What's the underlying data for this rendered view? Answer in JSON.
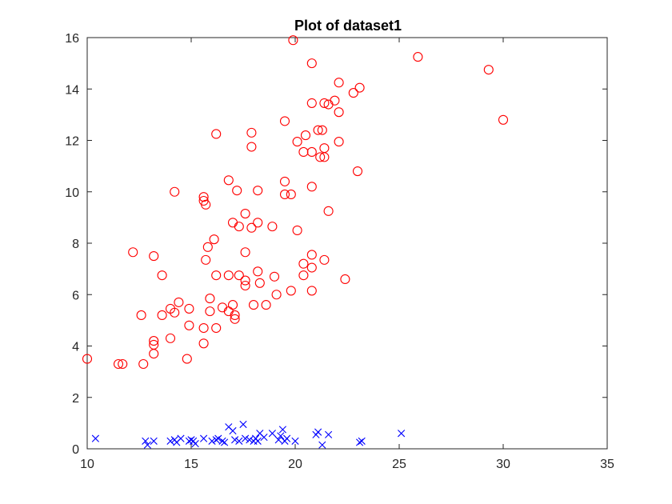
{
  "chart_data": {
    "type": "scatter",
    "title": "Plot of dataset1",
    "xlabel": "",
    "ylabel": "",
    "xlim": [
      10,
      35
    ],
    "ylim": [
      0,
      16
    ],
    "xticks": [
      10,
      15,
      20,
      25,
      30,
      35
    ],
    "yticks": [
      0,
      2,
      4,
      6,
      8,
      10,
      12,
      14,
      16
    ],
    "grid": false,
    "series": [
      {
        "marker": "o",
        "color": "#ff0000",
        "points": [
          [
            19.9,
            15.9
          ],
          [
            25.9,
            15.25
          ],
          [
            20.8,
            15.0
          ],
          [
            29.3,
            14.75
          ],
          [
            22.1,
            14.25
          ],
          [
            23.1,
            14.05
          ],
          [
            22.8,
            13.85
          ],
          [
            21.9,
            13.55
          ],
          [
            21.4,
            13.45
          ],
          [
            21.6,
            13.4
          ],
          [
            20.8,
            13.45
          ],
          [
            22.1,
            13.1
          ],
          [
            30.0,
            12.8
          ],
          [
            19.5,
            12.75
          ],
          [
            21.1,
            12.4
          ],
          [
            21.3,
            12.4
          ],
          [
            16.2,
            12.25
          ],
          [
            17.9,
            12.3
          ],
          [
            20.5,
            12.2
          ],
          [
            20.1,
            11.95
          ],
          [
            22.1,
            11.95
          ],
          [
            17.9,
            11.75
          ],
          [
            21.4,
            11.7
          ],
          [
            20.4,
            11.55
          ],
          [
            20.8,
            11.55
          ],
          [
            21.2,
            11.35
          ],
          [
            21.4,
            11.35
          ],
          [
            23.0,
            10.8
          ],
          [
            16.8,
            10.45
          ],
          [
            19.5,
            10.4
          ],
          [
            20.8,
            10.2
          ],
          [
            17.2,
            10.05
          ],
          [
            18.2,
            10.05
          ],
          [
            14.2,
            10.0
          ],
          [
            19.5,
            9.9
          ],
          [
            19.8,
            9.9
          ],
          [
            15.6,
            9.8
          ],
          [
            15.6,
            9.65
          ],
          [
            15.7,
            9.5
          ],
          [
            21.6,
            9.25
          ],
          [
            17.6,
            9.15
          ],
          [
            17.0,
            8.8
          ],
          [
            18.2,
            8.8
          ],
          [
            17.3,
            8.65
          ],
          [
            17.9,
            8.6
          ],
          [
            18.9,
            8.65
          ],
          [
            20.1,
            8.5
          ],
          [
            16.1,
            8.15
          ],
          [
            15.8,
            7.85
          ],
          [
            12.2,
            7.65
          ],
          [
            17.6,
            7.65
          ],
          [
            20.8,
            7.55
          ],
          [
            13.2,
            7.5
          ],
          [
            15.7,
            7.35
          ],
          [
            21.4,
            7.35
          ],
          [
            20.4,
            7.2
          ],
          [
            20.8,
            7.05
          ],
          [
            18.2,
            6.9
          ],
          [
            13.6,
            6.75
          ],
          [
            16.2,
            6.75
          ],
          [
            16.8,
            6.75
          ],
          [
            17.3,
            6.75
          ],
          [
            19.0,
            6.7
          ],
          [
            20.4,
            6.75
          ],
          [
            17.6,
            6.55
          ],
          [
            18.3,
            6.45
          ],
          [
            22.4,
            6.6
          ],
          [
            17.6,
            6.35
          ],
          [
            19.8,
            6.15
          ],
          [
            20.8,
            6.15
          ],
          [
            19.1,
            6.0
          ],
          [
            15.9,
            5.85
          ],
          [
            17.0,
            5.6
          ],
          [
            14.4,
            5.7
          ],
          [
            18.0,
            5.6
          ],
          [
            18.6,
            5.6
          ],
          [
            16.5,
            5.5
          ],
          [
            14.0,
            5.45
          ],
          [
            14.9,
            5.45
          ],
          [
            16.8,
            5.35
          ],
          [
            15.9,
            5.35
          ],
          [
            14.2,
            5.3
          ],
          [
            13.6,
            5.2
          ],
          [
            12.6,
            5.2
          ],
          [
            17.1,
            5.2
          ],
          [
            17.1,
            5.05
          ],
          [
            14.9,
            4.8
          ],
          [
            15.6,
            4.7
          ],
          [
            16.2,
            4.7
          ],
          [
            14.0,
            4.3
          ],
          [
            13.2,
            4.2
          ],
          [
            15.6,
            4.1
          ],
          [
            13.2,
            4.05
          ],
          [
            13.2,
            3.7
          ],
          [
            14.8,
            3.5
          ],
          [
            10.0,
            3.5
          ],
          [
            11.5,
            3.3
          ],
          [
            11.7,
            3.3
          ],
          [
            12.7,
            3.3
          ]
        ]
      },
      {
        "marker": "x",
        "color": "#0000ff",
        "points": [
          [
            10.4,
            0.4
          ],
          [
            12.8,
            0.3
          ],
          [
            12.9,
            0.15
          ],
          [
            13.2,
            0.3
          ],
          [
            14.0,
            0.3
          ],
          [
            14.2,
            0.35
          ],
          [
            14.3,
            0.25
          ],
          [
            14.5,
            0.4
          ],
          [
            14.9,
            0.3
          ],
          [
            15.0,
            0.35
          ],
          [
            15.1,
            0.3
          ],
          [
            15.2,
            0.2
          ],
          [
            15.6,
            0.4
          ],
          [
            16.0,
            0.3
          ],
          [
            16.2,
            0.35
          ],
          [
            16.3,
            0.4
          ],
          [
            16.5,
            0.3
          ],
          [
            16.6,
            0.25
          ],
          [
            16.8,
            0.85
          ],
          [
            17.0,
            0.7
          ],
          [
            17.1,
            0.35
          ],
          [
            17.3,
            0.3
          ],
          [
            17.5,
            0.95
          ],
          [
            17.6,
            0.4
          ],
          [
            17.8,
            0.35
          ],
          [
            18.0,
            0.3
          ],
          [
            18.1,
            0.4
          ],
          [
            18.2,
            0.3
          ],
          [
            18.3,
            0.6
          ],
          [
            18.5,
            0.45
          ],
          [
            18.9,
            0.6
          ],
          [
            19.2,
            0.35
          ],
          [
            19.3,
            0.5
          ],
          [
            19.4,
            0.75
          ],
          [
            19.5,
            0.3
          ],
          [
            19.6,
            0.4
          ],
          [
            20.0,
            0.3
          ],
          [
            21.0,
            0.55
          ],
          [
            21.1,
            0.65
          ],
          [
            21.3,
            0.15
          ],
          [
            21.6,
            0.55
          ],
          [
            23.1,
            0.25
          ],
          [
            23.2,
            0.3
          ],
          [
            25.1,
            0.6
          ]
        ]
      }
    ]
  }
}
